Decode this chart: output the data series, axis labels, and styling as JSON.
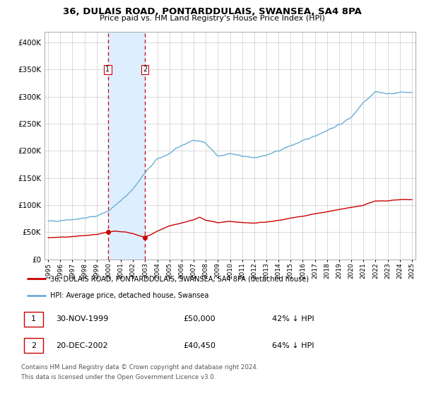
{
  "title": "36, DULAIS ROAD, PONTARDDULAIS, SWANSEA, SA4 8PA",
  "subtitle": "Price paid vs. HM Land Registry's House Price Index (HPI)",
  "hpi_label": "HPI: Average price, detached house, Swansea",
  "house_label": "36, DULAIS ROAD, PONTARDDULAIS, SWANSEA, SA4 8PA (detached house)",
  "sale1_date": "30-NOV-1999",
  "sale1_price": 50000,
  "sale1_pct": "42% ↓ HPI",
  "sale2_date": "20-DEC-2002",
  "sale2_price": 40450,
  "sale2_pct": "64% ↓ HPI",
  "footnote1": "Contains HM Land Registry data © Crown copyright and database right 2024.",
  "footnote2": "This data is licensed under the Open Government Licence v3.0.",
  "hpi_color": "#6baed6",
  "house_color": "#cc0000",
  "marker_color": "#cc0000",
  "shade_color": "#ddeeff",
  "vline_color": "#cc0000",
  "ylim": [
    0,
    420000
  ],
  "yticks": [
    0,
    50000,
    100000,
    150000,
    200000,
    250000,
    300000,
    350000,
    400000
  ],
  "xlim_start": 1994.7,
  "xlim_end": 2025.3,
  "hpi_anchors_t": [
    1995.0,
    1996.0,
    1997.0,
    1998.0,
    1999.0,
    2000.0,
    2001.0,
    2002.0,
    2003.0,
    2004.0,
    2005.0,
    2006.0,
    2007.0,
    2008.0,
    2009.0,
    2010.0,
    2011.0,
    2012.0,
    2013.0,
    2014.0,
    2015.0,
    2016.0,
    2017.0,
    2018.0,
    2019.0,
    2020.0,
    2021.0,
    2022.0,
    2023.0,
    2024.0,
    2025.0
  ],
  "hpi_anchors_v": [
    70000,
    72000,
    74000,
    76000,
    80000,
    90000,
    108000,
    130000,
    160000,
    185000,
    195000,
    210000,
    220000,
    215000,
    190000,
    195000,
    190000,
    188000,
    192000,
    200000,
    210000,
    218000,
    228000,
    238000,
    248000,
    262000,
    290000,
    310000,
    305000,
    308000,
    308000
  ],
  "house_anchors_t": [
    1995.0,
    1996.0,
    1997.0,
    1998.0,
    1999.0,
    1999.92,
    2000.5,
    2001.5,
    2002.0,
    2002.95,
    2003.5,
    2004.0,
    2005.0,
    2006.0,
    2007.0,
    2007.5,
    2008.0,
    2009.0,
    2010.0,
    2011.0,
    2012.0,
    2013.0,
    2014.0,
    2015.0,
    2016.0,
    2017.0,
    2018.0,
    2019.0,
    2020.0,
    2021.0,
    2022.0,
    2023.0,
    2024.0,
    2025.0
  ],
  "house_anchors_v": [
    40000,
    41000,
    42000,
    44000,
    46000,
    50000,
    52000,
    50000,
    48000,
    40450,
    46000,
    52000,
    62000,
    67000,
    73000,
    78000,
    72000,
    68000,
    70000,
    68000,
    67000,
    69000,
    72000,
    76000,
    80000,
    84000,
    88000,
    92000,
    96000,
    100000,
    108000,
    108000,
    110000,
    110000
  ]
}
